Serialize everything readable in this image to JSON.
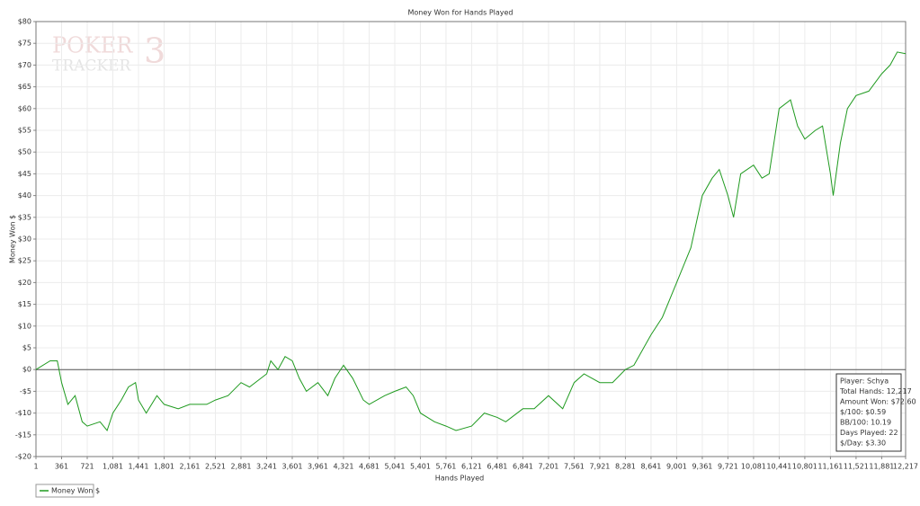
{
  "chart_data": {
    "type": "line",
    "title": "Money Won for Hands Played",
    "x_label": "Hands Played",
    "y_label": "Money Won $",
    "watermark": [
      "POKER",
      "TRACKER",
      "3"
    ],
    "xlim": [
      1,
      12217
    ],
    "ylim": [
      -20,
      80
    ],
    "xticks": [
      1,
      361,
      721,
      {
        "value": 1081,
        "label": "1,081"
      },
      {
        "value": 1441,
        "label": "1,441"
      },
      {
        "value": 1801,
        "label": "1,801"
      },
      {
        "value": 2161,
        "label": "2,161"
      },
      {
        "value": 2521,
        "label": "2,521"
      },
      {
        "value": 2881,
        "label": "2,881"
      },
      {
        "value": 3241,
        "label": "3,241"
      },
      {
        "value": 3601,
        "label": "3,601"
      },
      {
        "value": 3961,
        "label": "3,961"
      },
      {
        "value": 4321,
        "label": "4,321"
      },
      {
        "value": 4681,
        "label": "4,681"
      },
      {
        "value": 5041,
        "label": "5,041"
      },
      {
        "value": 5401,
        "label": "5,401"
      },
      {
        "value": 5761,
        "label": "5,761"
      },
      {
        "value": 6121,
        "label": "6,121"
      },
      {
        "value": 6481,
        "label": "6,481"
      },
      {
        "value": 6841,
        "label": "6,841"
      },
      {
        "value": 7201,
        "label": "7,201"
      },
      {
        "value": 7561,
        "label": "7,561"
      },
      {
        "value": 7921,
        "label": "7,921"
      },
      {
        "value": 8281,
        "label": "8,281"
      },
      {
        "value": 8641,
        "label": "8,641"
      },
      {
        "value": 9001,
        "label": "9,001"
      },
      {
        "value": 9361,
        "label": "9,361"
      },
      {
        "value": 9721,
        "label": "9,721"
      },
      {
        "value": 10081,
        "label": "10,081"
      },
      {
        "value": 10441,
        "label": "10,441"
      },
      {
        "value": 10801,
        "label": "10,801"
      },
      {
        "value": 11161,
        "label": "11,161"
      },
      {
        "value": 11521,
        "label": "11,521"
      },
      {
        "value": 11881,
        "label": "11,881"
      },
      {
        "value": 12217,
        "label": "12,217"
      }
    ],
    "yticks": [
      {
        "value": -20,
        "label": "-$20"
      },
      {
        "value": -15,
        "label": "-$15"
      },
      {
        "value": -10,
        "label": "-$10"
      },
      {
        "value": -5,
        "label": "-$5"
      },
      {
        "value": 0,
        "label": "$0"
      },
      {
        "value": 5,
        "label": "$5"
      },
      {
        "value": 10,
        "label": "$10"
      },
      {
        "value": 15,
        "label": "$15"
      },
      {
        "value": 20,
        "label": "$20"
      },
      {
        "value": 25,
        "label": "$25"
      },
      {
        "value": 30,
        "label": "$30"
      },
      {
        "value": 35,
        "label": "$35"
      },
      {
        "value": 40,
        "label": "$40"
      },
      {
        "value": 45,
        "label": "$45"
      },
      {
        "value": 50,
        "label": "$50"
      },
      {
        "value": 55,
        "label": "$55"
      },
      {
        "value": 60,
        "label": "$60"
      },
      {
        "value": 65,
        "label": "$65"
      },
      {
        "value": 70,
        "label": "$70"
      },
      {
        "value": 75,
        "label": "$75"
      },
      {
        "value": 80,
        "label": "$80"
      }
    ],
    "grid": true,
    "x": [
      1,
      200,
      300,
      361,
      450,
      550,
      650,
      721,
      900,
      1000,
      1081,
      1200,
      1300,
      1400,
      1441,
      1550,
      1700,
      1801,
      2000,
      2161,
      2400,
      2521,
      2700,
      2881,
      3000,
      3241,
      3300,
      3400,
      3500,
      3601,
      3700,
      3800,
      3961,
      4100,
      4200,
      4321,
      4450,
      4600,
      4681,
      4900,
      5041,
      5200,
      5300,
      5401,
      5600,
      5761,
      5900,
      6121,
      6300,
      6481,
      6600,
      6841,
      7000,
      7201,
      7400,
      7561,
      7700,
      7921,
      8100,
      8281,
      8400,
      8641,
      8800,
      9001,
      9200,
      9361,
      9500,
      9600,
      9721,
      9800,
      9900,
      10081,
      10200,
      10300,
      10441,
      10600,
      10700,
      10801,
      10950,
      11050,
      11161,
      11200,
      11300,
      11400,
      11521,
      11700,
      11881,
      12000,
      12100,
      12217
    ],
    "series": [
      {
        "name": "Money Won $",
        "color": "#1f9a1f",
        "values": [
          0,
          2,
          2,
          -3,
          -8,
          -6,
          -12,
          -13,
          -12,
          -14,
          -10,
          -7,
          -4,
          -3,
          -7,
          -10,
          -6,
          -8,
          -9,
          -8,
          -8,
          -7,
          -6,
          -3,
          -4,
          -1,
          2,
          0,
          3,
          2,
          -2,
          -5,
          -3,
          -6,
          -2,
          1,
          -2,
          -7,
          -8,
          -6,
          -5,
          -4,
          -6,
          -10,
          -12,
          -13,
          -14,
          -13,
          -10,
          -11,
          -12,
          -9,
          -9,
          -6,
          -9,
          -3,
          -1,
          -3,
          -3,
          0,
          1,
          8,
          12,
          20,
          28,
          40,
          44,
          46,
          40,
          35,
          45,
          47,
          44,
          45,
          60,
          62,
          56,
          53,
          55,
          56,
          45,
          40,
          52,
          60,
          63,
          64,
          68,
          70,
          73,
          72.6
        ]
      }
    ],
    "legend": "bottom-left",
    "stats": [
      "Player: Schya",
      "Total Hands: 12,217",
      "Amount Won: $72.60",
      "$/100: $0.59",
      "BB/100: 10.19",
      "Days Played: 22",
      "$/Day: $3.30"
    ]
  }
}
